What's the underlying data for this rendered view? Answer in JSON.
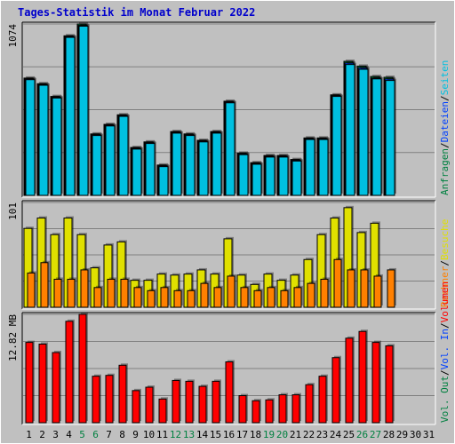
{
  "title": "Tages-Statistik im Monat Februar 2022",
  "colors": {
    "background": "#c0c0c0",
    "title": "#0000cc",
    "weekday": "#000000",
    "weekend": "#008040",
    "anfragen": "#008040",
    "dateien": "#0040ff",
    "seiten": "#00c0e0",
    "besuche": "#e0e000",
    "rechner": "#ff8000",
    "vol_out": "#008040",
    "vol_in": "#0040ff",
    "volumen": "#ff0000",
    "slash": "#000000"
  },
  "chart_data": [
    {
      "type": "bar",
      "panel": "top",
      "ymax_label": "1074",
      "ymax": 1074,
      "right_labels": [
        {
          "text": "Anfragen",
          "color_key": "anfragen"
        },
        {
          "text": "/",
          "color_key": "slash"
        },
        {
          "text": "Dateien",
          "color_key": "dateien"
        },
        {
          "text": "/",
          "color_key": "slash"
        },
        {
          "text": "Seiten",
          "color_key": "seiten"
        }
      ],
      "series": [
        {
          "name": "Anfragen",
          "values": [
            735,
            700,
            620,
            1000,
            1074,
            385,
            445,
            505,
            300,
            335,
            190,
            400,
            385,
            345,
            400,
            590,
            265,
            205,
            250,
            250,
            225,
            360,
            360,
            630,
            840,
            810,
            745,
            740,
            null,
            null,
            null
          ]
        },
        {
          "name": "Dateien",
          "values": [
            730,
            695,
            615,
            995,
            1065,
            380,
            440,
            500,
            295,
            330,
            185,
            395,
            380,
            340,
            395,
            585,
            260,
            200,
            245,
            245,
            220,
            355,
            355,
            625,
            830,
            800,
            735,
            730,
            null,
            null,
            null
          ]
        },
        {
          "name": "Seiten",
          "values": [
            725,
            690,
            610,
            990,
            1060,
            375,
            435,
            495,
            290,
            325,
            180,
            390,
            375,
            335,
            390,
            580,
            255,
            195,
            240,
            240,
            215,
            350,
            350,
            620,
            820,
            790,
            730,
            720,
            null,
            null,
            null
          ]
        }
      ]
    },
    {
      "type": "bar",
      "panel": "middle",
      "ymax_label": "101",
      "ymax": 101,
      "right_labels": [
        {
          "text": "Rechner",
          "color_key": "rechner"
        },
        {
          "text": "/",
          "color_key": "slash"
        },
        {
          "text": "Besuche",
          "color_key": "besuche"
        }
      ],
      "series": [
        {
          "name": "Besuche",
          "values": [
            76,
            86,
            70,
            86,
            70,
            38,
            60,
            63,
            26,
            26,
            32,
            31,
            32,
            36,
            32,
            66,
            31,
            22,
            32,
            26,
            31,
            46,
            70,
            86,
            96,
            72,
            81,
            null,
            null,
            null,
            null
          ]
        },
        {
          "name": "Rechner",
          "values": [
            33,
            43,
            27,
            27,
            36,
            19,
            27,
            27,
            19,
            16,
            19,
            16,
            16,
            23,
            19,
            30,
            19,
            16,
            19,
            16,
            19,
            23,
            27,
            46,
            36,
            36,
            30,
            36,
            null,
            null,
            null
          ]
        }
      ]
    },
    {
      "type": "bar",
      "panel": "bottom",
      "ymax_label": "12.82 MB",
      "ymax": 12.82,
      "right_labels": [
        {
          "text": "Vol. Out",
          "color_key": "vol_out"
        },
        {
          "text": "/",
          "color_key": "slash"
        },
        {
          "text": "Vol. In",
          "color_key": "vol_in"
        },
        {
          "text": "/",
          "color_key": "slash"
        },
        {
          "text": "Volumen",
          "color_key": "volumen"
        }
      ],
      "series": [
        {
          "name": "Volumen",
          "values": [
            9.5,
            9.3,
            8.3,
            12.0,
            12.82,
            5.5,
            5.6,
            6.8,
            3.8,
            4.2,
            2.8,
            5.0,
            4.9,
            4.3,
            4.9,
            7.2,
            3.2,
            2.6,
            2.7,
            3.3,
            3.3,
            4.5,
            5.5,
            7.7,
            10.0,
            10.8,
            9.5,
            9.1,
            null,
            null,
            null
          ]
        }
      ]
    }
  ],
  "x_labels": [
    {
      "text": "1",
      "weekend": false
    },
    {
      "text": "2",
      "weekend": false
    },
    {
      "text": "3",
      "weekend": false
    },
    {
      "text": "4",
      "weekend": false
    },
    {
      "text": "5",
      "weekend": true
    },
    {
      "text": "6",
      "weekend": true
    },
    {
      "text": "7",
      "weekend": false
    },
    {
      "text": "8",
      "weekend": false
    },
    {
      "text": "9",
      "weekend": false
    },
    {
      "text": "10",
      "weekend": false
    },
    {
      "text": "11",
      "weekend": false
    },
    {
      "text": "12",
      "weekend": true
    },
    {
      "text": "13",
      "weekend": true
    },
    {
      "text": "14",
      "weekend": false
    },
    {
      "text": "15",
      "weekend": false
    },
    {
      "text": "16",
      "weekend": false
    },
    {
      "text": "17",
      "weekend": false
    },
    {
      "text": "18",
      "weekend": false
    },
    {
      "text": "19",
      "weekend": true
    },
    {
      "text": "20",
      "weekend": true
    },
    {
      "text": "21",
      "weekend": false
    },
    {
      "text": "22",
      "weekend": false
    },
    {
      "text": "23",
      "weekend": false
    },
    {
      "text": "24",
      "weekend": false
    },
    {
      "text": "25",
      "weekend": false
    },
    {
      "text": "26",
      "weekend": true
    },
    {
      "text": "27",
      "weekend": true
    },
    {
      "text": "28",
      "weekend": false
    },
    {
      "text": "29",
      "weekend": false
    },
    {
      "text": "30",
      "weekend": false
    },
    {
      "text": "31",
      "weekend": false
    }
  ]
}
